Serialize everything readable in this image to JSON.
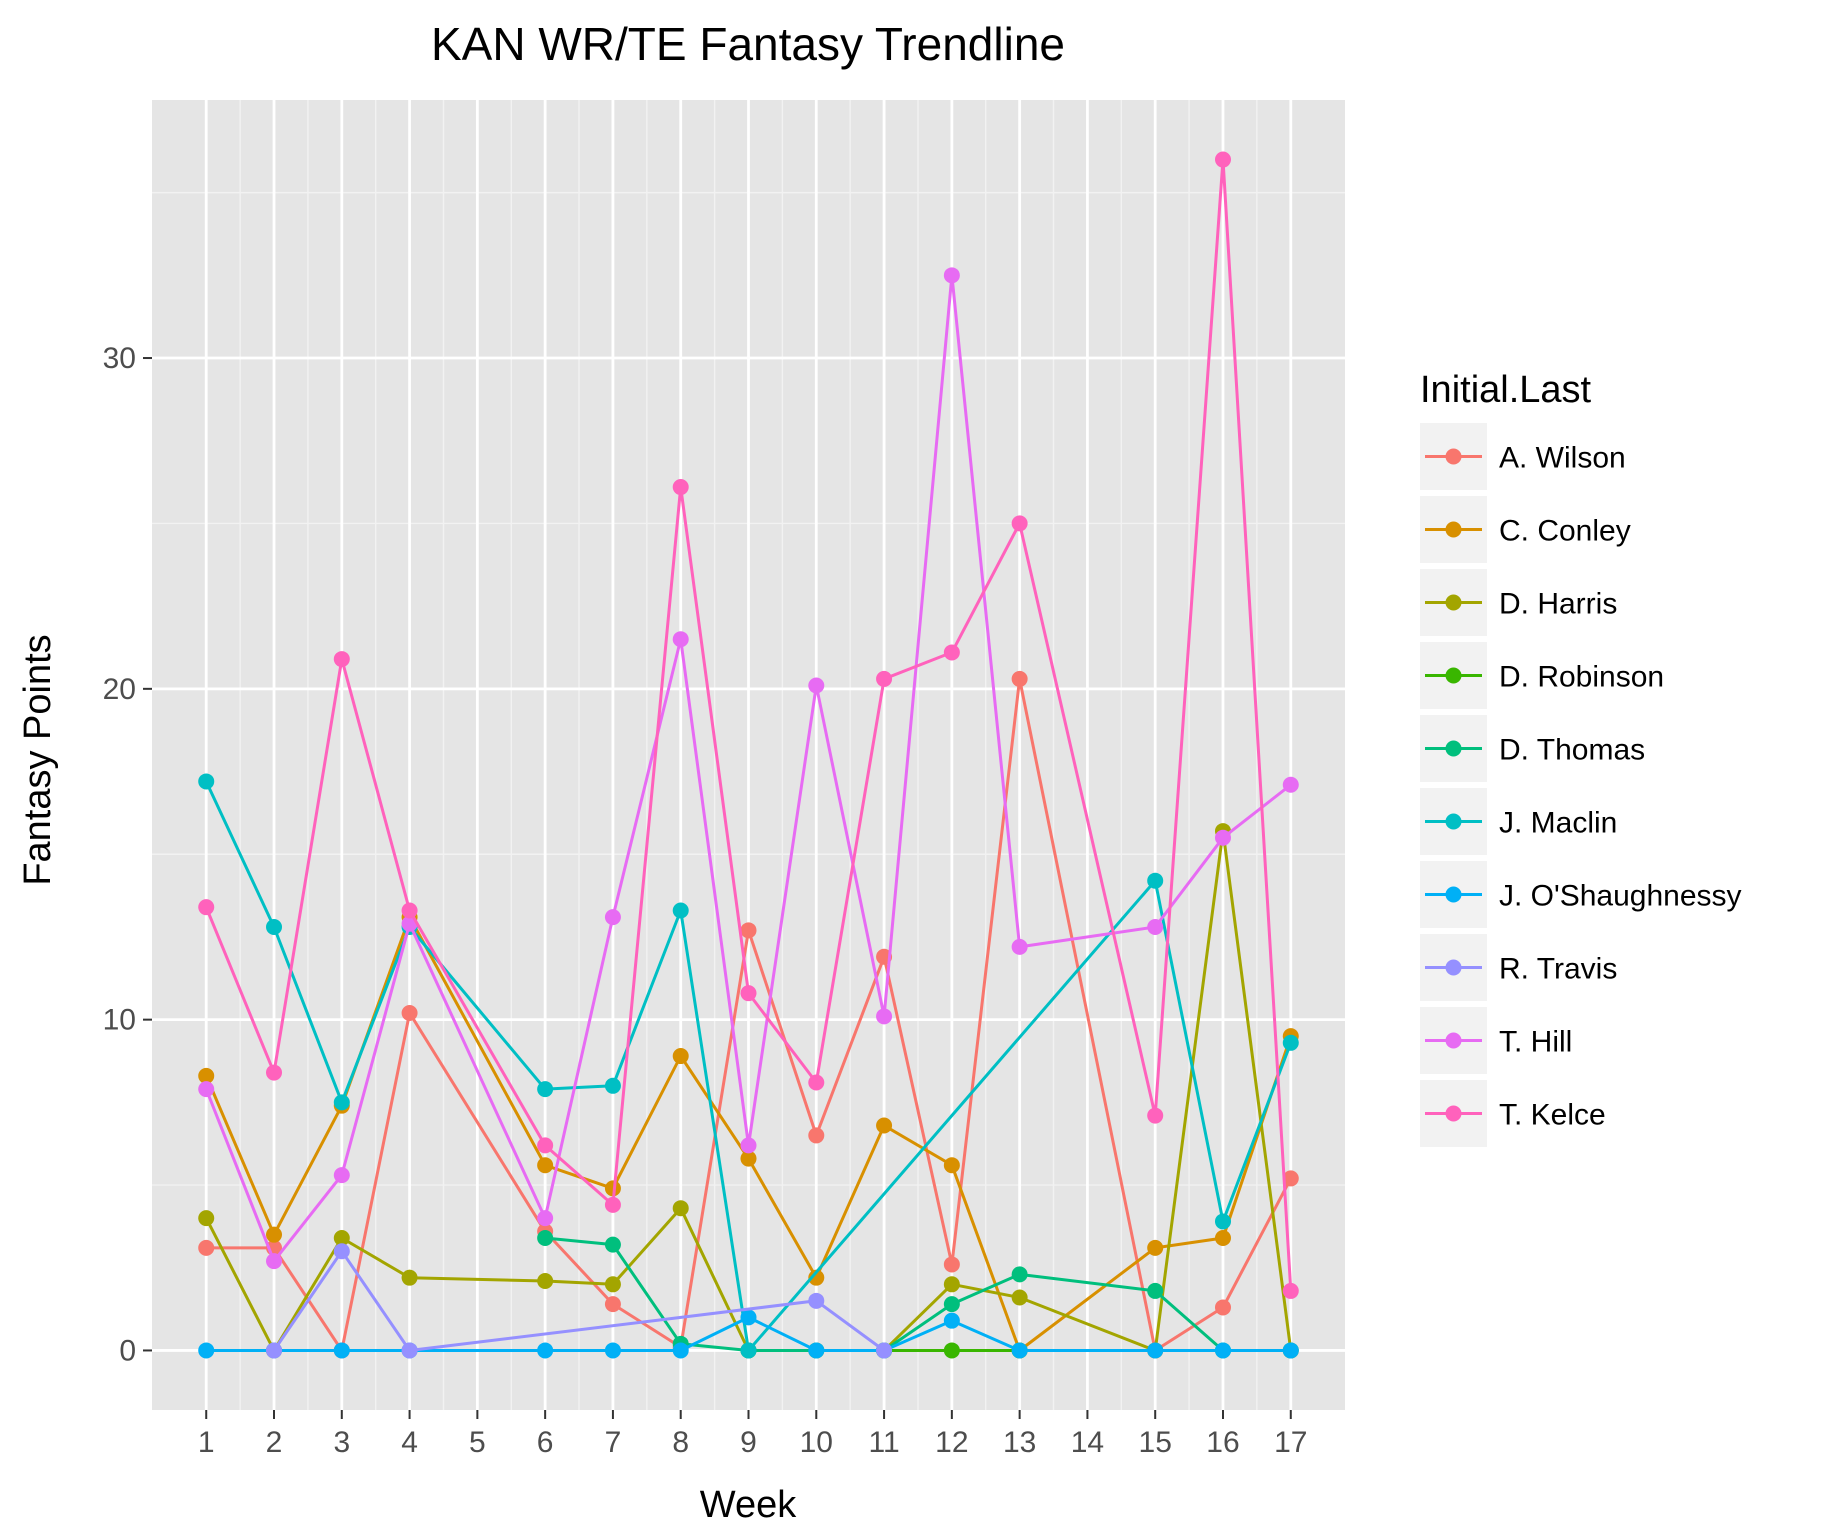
{
  "chart_data": {
    "type": "line",
    "title": "KAN WR/TE Fantasy Trendline",
    "xlabel": "Week",
    "ylabel": "Fantasy Points",
    "x": [
      1,
      2,
      3,
      4,
      5,
      6,
      7,
      8,
      9,
      10,
      11,
      12,
      13,
      14,
      15,
      16,
      17
    ],
    "x_tick_labels": [
      "1",
      "2",
      "3",
      "4",
      "5",
      "6",
      "7",
      "8",
      "9",
      "10",
      "11",
      "12",
      "13",
      "14",
      "15",
      "16",
      "17"
    ],
    "y_ticks": [
      0,
      10,
      20,
      30
    ],
    "y_tick_labels": [
      "0",
      "10",
      "20",
      "30"
    ],
    "xlim": [
      0.2,
      17.8
    ],
    "ylim": [
      -1.8,
      37.8
    ],
    "grid": true,
    "panel_background": "#e5e5e5",
    "legend": {
      "title": "Initial.Last",
      "placement": "right"
    },
    "series": [
      {
        "name": "A. Wilson",
        "color": "#F8766D",
        "points": [
          [
            1,
            3.1
          ],
          [
            2,
            3.1
          ],
          [
            3,
            0
          ],
          [
            4,
            10.2
          ],
          [
            6,
            3.6
          ],
          [
            7,
            1.4
          ],
          [
            8,
            0.1
          ],
          [
            9,
            12.7
          ],
          [
            10,
            6.5
          ],
          [
            11,
            11.9
          ],
          [
            12,
            2.6
          ],
          [
            13,
            20.3
          ],
          [
            15,
            0
          ],
          [
            16,
            1.3
          ],
          [
            17,
            5.2
          ]
        ]
      },
      {
        "name": "C. Conley",
        "color": "#D89000",
        "points": [
          [
            1,
            8.3
          ],
          [
            2,
            3.5
          ],
          [
            3,
            7.4
          ],
          [
            4,
            13.1
          ],
          [
            6,
            5.6
          ],
          [
            7,
            4.9
          ],
          [
            8,
            8.9
          ],
          [
            9,
            5.8
          ],
          [
            10,
            2.2
          ],
          [
            11,
            6.8
          ],
          [
            12,
            5.6
          ],
          [
            13,
            0
          ],
          [
            15,
            3.1
          ],
          [
            16,
            3.4
          ],
          [
            17,
            9.5
          ]
        ]
      },
      {
        "name": "D. Harris",
        "color": "#A3A500",
        "points": [
          [
            1,
            4.0
          ],
          [
            2,
            0
          ],
          [
            3,
            3.4
          ],
          [
            4,
            2.2
          ],
          [
            6,
            2.1
          ],
          [
            7,
            2.0
          ],
          [
            8,
            4.3
          ],
          [
            9,
            0
          ],
          [
            10,
            0
          ],
          [
            11,
            0
          ],
          [
            12,
            2.0
          ],
          [
            13,
            1.6
          ],
          [
            15,
            0
          ],
          [
            16,
            15.7
          ],
          [
            17,
            0
          ]
        ]
      },
      {
        "name": "D. Robinson",
        "color": "#39B600",
        "points": [
          [
            11,
            0
          ],
          [
            12,
            0
          ],
          [
            13,
            0
          ]
        ]
      },
      {
        "name": "D. Thomas",
        "color": "#00BF7D",
        "points": [
          [
            6,
            3.4
          ],
          [
            7,
            3.2
          ],
          [
            8,
            0.2
          ],
          [
            9,
            0
          ],
          [
            10,
            0
          ],
          [
            11,
            0
          ],
          [
            12,
            1.4
          ],
          [
            13,
            2.3
          ],
          [
            15,
            1.8
          ],
          [
            16,
            0
          ],
          [
            17,
            0
          ]
        ]
      },
      {
        "name": "J. Maclin",
        "color": "#00BFC4",
        "points": [
          [
            1,
            17.2
          ],
          [
            2,
            12.8
          ],
          [
            3,
            7.5
          ],
          [
            4,
            12.8
          ],
          [
            6,
            7.9
          ],
          [
            7,
            8.0
          ],
          [
            8,
            13.3
          ],
          [
            9,
            0
          ],
          [
            15,
            14.2
          ],
          [
            16,
            3.9
          ],
          [
            17,
            9.3
          ]
        ]
      },
      {
        "name": "J. O'Shaughnessy",
        "color": "#00B0F6",
        "points": [
          [
            1,
            0
          ],
          [
            2,
            0
          ],
          [
            3,
            0
          ],
          [
            4,
            0
          ],
          [
            6,
            0
          ],
          [
            7,
            0
          ],
          [
            8,
            0
          ],
          [
            9,
            1.0
          ],
          [
            10,
            0
          ],
          [
            11,
            0
          ],
          [
            12,
            0.9
          ],
          [
            13,
            0
          ],
          [
            15,
            0
          ],
          [
            16,
            0
          ],
          [
            17,
            0
          ]
        ]
      },
      {
        "name": "R. Travis",
        "color": "#9590FF",
        "points": [
          [
            2,
            0
          ],
          [
            3,
            3.0
          ],
          [
            4,
            0
          ],
          [
            10,
            1.5
          ],
          [
            11,
            0
          ]
        ]
      },
      {
        "name": "T. Hill",
        "color": "#E76BF3",
        "points": [
          [
            1,
            7.9
          ],
          [
            2,
            2.7
          ],
          [
            3,
            5.3
          ],
          [
            4,
            12.9
          ],
          [
            6,
            4.0
          ],
          [
            7,
            13.1
          ],
          [
            8,
            21.5
          ],
          [
            9,
            6.2
          ],
          [
            10,
            20.1
          ],
          [
            11,
            10.1
          ],
          [
            12,
            32.5
          ],
          [
            13,
            12.2
          ],
          [
            15,
            12.8
          ],
          [
            16,
            15.5
          ],
          [
            17,
            17.1
          ]
        ]
      },
      {
        "name": "T. Kelce",
        "color": "#FF62BC",
        "points": [
          [
            1,
            13.4
          ],
          [
            2,
            8.4
          ],
          [
            3,
            20.9
          ],
          [
            4,
            13.3
          ],
          [
            6,
            6.2
          ],
          [
            7,
            4.4
          ],
          [
            8,
            26.1
          ],
          [
            9,
            10.8
          ],
          [
            10,
            8.1
          ],
          [
            11,
            20.3
          ],
          [
            12,
            21.1
          ],
          [
            13,
            25.0
          ],
          [
            15,
            7.1
          ],
          [
            16,
            36.0
          ],
          [
            17,
            1.8
          ]
        ]
      }
    ]
  }
}
